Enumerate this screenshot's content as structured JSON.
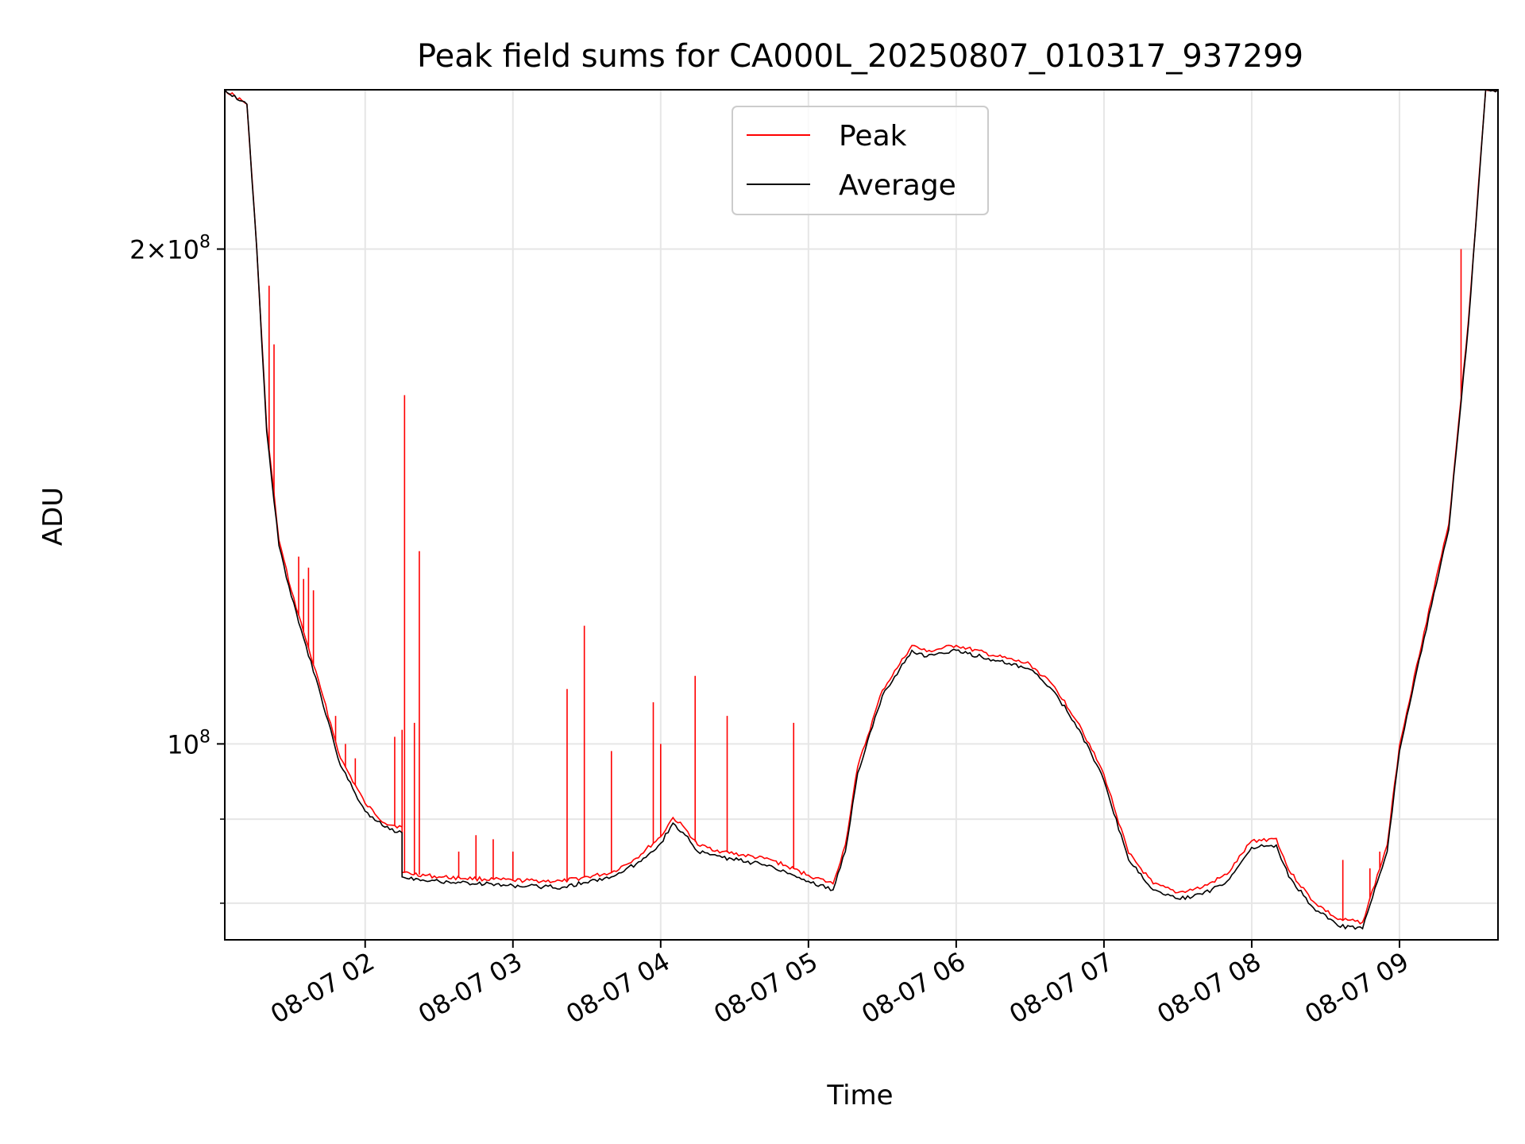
{
  "chart_data": {
    "type": "line",
    "title": "Peak field sums for CA000L_20250807_010317_937299",
    "xlabel": "Time",
    "ylabel": "ADU",
    "y_scale": "log",
    "ylim": [
      76000000,
      250000000
    ],
    "xlim": [
      "08-07 01:03",
      "08-07 09:40"
    ],
    "grid": true,
    "legend_position": "top-center",
    "x_ticks": [
      {
        "label": "08-07 02",
        "time": "08-07 02:00"
      },
      {
        "label": "08-07 03",
        "time": "08-07 03:00"
      },
      {
        "label": "08-07 04",
        "time": "08-07 04:00"
      },
      {
        "label": "08-07 05",
        "time": "08-07 05:00"
      },
      {
        "label": "08-07 06",
        "time": "08-07 06:00"
      },
      {
        "label": "08-07 07",
        "time": "08-07 07:00"
      },
      {
        "label": "08-07 08",
        "time": "08-07 08:00"
      },
      {
        "label": "08-07 09",
        "time": "08-07 09:00"
      }
    ],
    "y_ticks": [
      {
        "value": 100000000,
        "mantissa": "",
        "exponent": "8"
      },
      {
        "value": 200000000,
        "mantissa": "2×",
        "exponent": "8"
      }
    ],
    "y_minor_ticks": [
      80000000,
      90000000
    ],
    "series": [
      {
        "name": "Average",
        "color": "#000000",
        "points": [
          [
            "08-07 01:03",
            250000000
          ],
          [
            "08-07 01:12",
            245000000
          ],
          [
            "08-07 01:16",
            200000000
          ],
          [
            "08-07 01:20",
            155000000
          ],
          [
            "08-07 01:25",
            132000000
          ],
          [
            "08-07 01:30",
            123000000
          ],
          [
            "08-07 01:35",
            116000000
          ],
          [
            "08-07 01:42",
            107000000
          ],
          [
            "08-07 01:50",
            97000000
          ],
          [
            "08-07 02:00",
            91000000
          ],
          [
            "08-07 02:08",
            89000000
          ],
          [
            "08-07 02:15",
            88300000
          ],
          [
            "08-07 02:15",
            83000000
          ],
          [
            "08-07 02:30",
            82500000
          ],
          [
            "08-07 03:00",
            82000000
          ],
          [
            "08-07 03:20",
            81800000
          ],
          [
            "08-07 03:40",
            83000000
          ],
          [
            "08-07 03:50",
            84500000
          ],
          [
            "08-07 04:00",
            87000000
          ],
          [
            "08-07 04:05",
            89500000
          ],
          [
            "08-07 04:10",
            88000000
          ],
          [
            "08-07 04:15",
            86000000
          ],
          [
            "08-07 04:25",
            85300000
          ],
          [
            "08-07 04:45",
            84300000
          ],
          [
            "08-07 05:00",
            82500000
          ],
          [
            "08-07 05:10",
            81500000
          ],
          [
            "08-07 05:15",
            86000000
          ],
          [
            "08-07 05:20",
            96000000
          ],
          [
            "08-07 05:30",
            107000000
          ],
          [
            "08-07 05:37",
            111000000
          ],
          [
            "08-07 05:42",
            114000000
          ],
          [
            "08-07 05:48",
            113000000
          ],
          [
            "08-07 06:00",
            114000000
          ],
          [
            "08-07 06:15",
            112500000
          ],
          [
            "08-07 06:30",
            111000000
          ],
          [
            "08-07 06:40",
            107500000
          ],
          [
            "08-07 06:50",
            102000000
          ],
          [
            "08-07 07:00",
            95000000
          ],
          [
            "08-07 07:10",
            85000000
          ],
          [
            "08-07 07:20",
            81500000
          ],
          [
            "08-07 07:30",
            80500000
          ],
          [
            "08-07 07:40",
            81000000
          ],
          [
            "08-07 07:50",
            82500000
          ],
          [
            "08-07 08:00",
            86500000
          ],
          [
            "08-07 08:10",
            86800000
          ],
          [
            "08-07 08:15",
            83000000
          ],
          [
            "08-07 08:25",
            79500000
          ],
          [
            "08-07 08:35",
            77500000
          ],
          [
            "08-07 08:45",
            77200000
          ],
          [
            "08-07 08:55",
            86000000
          ],
          [
            "08-07 09:00",
            99000000
          ],
          [
            "08-07 09:10",
            116000000
          ],
          [
            "08-07 09:20",
            135000000
          ],
          [
            "08-07 09:28",
            180000000
          ],
          [
            "08-07 09:35",
            250000000
          ],
          [
            "08-07 09:40",
            250000000
          ]
        ]
      },
      {
        "name": "Peak",
        "color": "#ff0000",
        "points": [
          [
            "08-07 01:03",
            250000000
          ],
          [
            "08-07 01:12",
            245000000
          ],
          [
            "08-07 01:16",
            200000000
          ],
          [
            "08-07 01:20",
            156000000
          ],
          [
            "08-07 01:25",
            133000000
          ],
          [
            "08-07 01:30",
            124000000
          ],
          [
            "08-07 01:35",
            117000000
          ],
          [
            "08-07 01:42",
            108000000
          ],
          [
            "08-07 01:50",
            98000000
          ],
          [
            "08-07 02:00",
            92000000
          ],
          [
            "08-07 02:08",
            89500000
          ],
          [
            "08-07 02:15",
            89000000
          ],
          [
            "08-07 02:15",
            83500000
          ],
          [
            "08-07 02:30",
            83000000
          ],
          [
            "08-07 03:00",
            82600000
          ],
          [
            "08-07 03:20",
            82500000
          ],
          [
            "08-07 03:40",
            83500000
          ],
          [
            "08-07 03:50",
            85200000
          ],
          [
            "08-07 04:00",
            87800000
          ],
          [
            "08-07 04:05",
            90200000
          ],
          [
            "08-07 04:10",
            88800000
          ],
          [
            "08-07 04:15",
            86800000
          ],
          [
            "08-07 04:25",
            86000000
          ],
          [
            "08-07 04:45",
            85000000
          ],
          [
            "08-07 05:00",
            83200000
          ],
          [
            "08-07 05:10",
            82200000
          ],
          [
            "08-07 05:15",
            86800000
          ],
          [
            "08-07 05:20",
            96800000
          ],
          [
            "08-07 05:30",
            107800000
          ],
          [
            "08-07 05:37",
            111800000
          ],
          [
            "08-07 05:42",
            114800000
          ],
          [
            "08-07 05:48",
            113800000
          ],
          [
            "08-07 06:00",
            114800000
          ],
          [
            "08-07 06:15",
            113200000
          ],
          [
            "08-07 06:30",
            111800000
          ],
          [
            "08-07 06:40",
            108300000
          ],
          [
            "08-07 06:50",
            102800000
          ],
          [
            "08-07 07:00",
            95800000
          ],
          [
            "08-07 07:10",
            85800000
          ],
          [
            "08-07 07:20",
            82200000
          ],
          [
            "08-07 07:30",
            81200000
          ],
          [
            "08-07 07:40",
            81800000
          ],
          [
            "08-07 07:50",
            83300000
          ],
          [
            "08-07 08:00",
            87300000
          ],
          [
            "08-07 08:10",
            87600000
          ],
          [
            "08-07 08:15",
            83800000
          ],
          [
            "08-07 08:25",
            80200000
          ],
          [
            "08-07 08:35",
            78200000
          ],
          [
            "08-07 08:45",
            77900000
          ],
          [
            "08-07 08:55",
            86800000
          ],
          [
            "08-07 09:00",
            99800000
          ],
          [
            "08-07 09:10",
            117000000
          ],
          [
            "08-07 09:20",
            136000000
          ],
          [
            "08-07 09:28",
            181000000
          ],
          [
            "08-07 09:35",
            250000000
          ],
          [
            "08-07 09:40",
            250000000
          ]
        ],
        "spikes": [
          [
            "08-07 01:21",
            190000000
          ],
          [
            "08-07 01:23",
            175000000
          ],
          [
            "08-07 01:33",
            130000000
          ],
          [
            "08-07 01:35",
            126000000
          ],
          [
            "08-07 01:37",
            128000000
          ],
          [
            "08-07 01:39",
            124000000
          ],
          [
            "08-07 01:48",
            104000000
          ],
          [
            "08-07 01:52",
            100000000
          ],
          [
            "08-07 01:56",
            98000000
          ],
          [
            "08-07 02:12",
            101000000
          ],
          [
            "08-07 02:15",
            102000000
          ],
          [
            "08-07 02:16",
            163000000
          ],
          [
            "08-07 02:20",
            103000000
          ],
          [
            "08-07 02:22",
            131000000
          ],
          [
            "08-07 02:38",
            86000000
          ],
          [
            "08-07 02:45",
            88000000
          ],
          [
            "08-07 02:52",
            87500000
          ],
          [
            "08-07 03:00",
            86000000
          ],
          [
            "08-07 03:22",
            108000000
          ],
          [
            "08-07 03:29",
            118000000
          ],
          [
            "08-07 03:40",
            99000000
          ],
          [
            "08-07 03:57",
            106000000
          ],
          [
            "08-07 04:00",
            100000000
          ],
          [
            "08-07 04:14",
            110000000
          ],
          [
            "08-07 04:27",
            104000000
          ],
          [
            "08-07 04:54",
            103000000
          ],
          [
            "08-07 08:37",
            85000000
          ],
          [
            "08-07 08:48",
            84000000
          ],
          [
            "08-07 08:52",
            86000000
          ],
          [
            "08-07 09:25",
            200000000
          ]
        ]
      }
    ]
  }
}
